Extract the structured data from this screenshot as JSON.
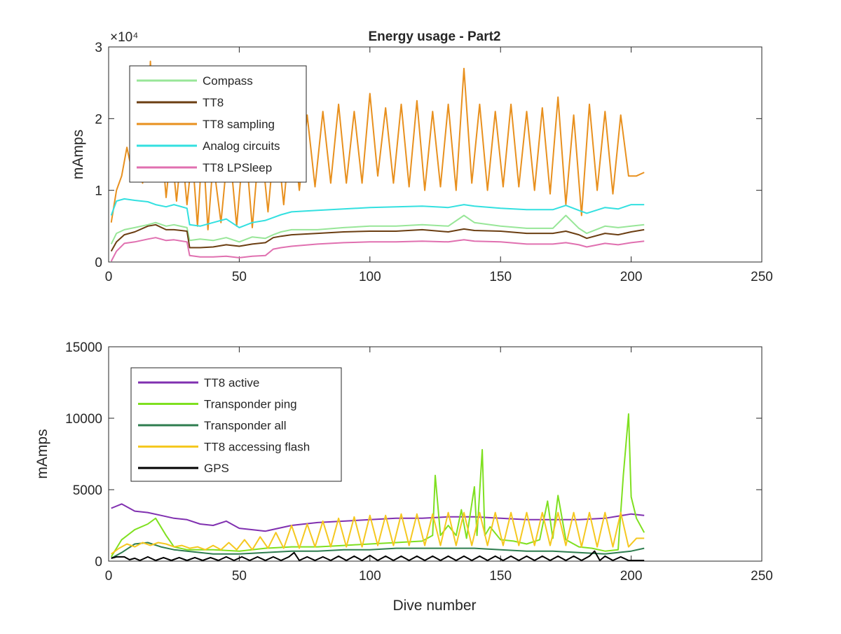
{
  "figure": {
    "title": "Energy usage - Part2"
  },
  "chart_data": [
    {
      "type": "line",
      "title": "Energy usage - Part2",
      "xlabel": "",
      "ylabel": "mAmps",
      "xlim": [
        0,
        250
      ],
      "ylim": [
        0,
        30000
      ],
      "xticks": [
        0,
        50,
        100,
        150,
        200,
        250
      ],
      "yticks": [
        0,
        10000,
        20000,
        30000
      ],
      "xtick_labels": [
        "0",
        "50",
        "100",
        "150",
        "200",
        "250"
      ],
      "ytick_labels": [
        "0",
        "1",
        "2",
        "3"
      ],
      "exponent_label": "×10⁴",
      "grid": false,
      "legend_position": "top-left",
      "legend": [
        "Compass",
        "TT8",
        "TT8 sampling",
        "Analog circuits",
        "TT8 LPSleep"
      ],
      "x_range": [
        1,
        205
      ],
      "series": [
        {
          "name": "Compass",
          "color": "#98e698",
          "x": [
            1,
            3,
            6,
            10,
            15,
            18,
            22,
            25,
            30,
            31,
            35,
            40,
            45,
            50,
            55,
            60,
            63,
            66,
            70,
            80,
            90,
            100,
            110,
            120,
            130,
            136,
            140,
            150,
            160,
            170,
            175,
            180,
            183,
            190,
            195,
            200,
            205
          ],
          "y": [
            2500,
            4000,
            4500,
            4800,
            5200,
            5500,
            5000,
            5200,
            4800,
            3000,
            3200,
            3000,
            3400,
            2800,
            3500,
            3300,
            3800,
            4200,
            4500,
            4500,
            4800,
            5000,
            5000,
            5200,
            5000,
            6500,
            5500,
            5000,
            4700,
            4700,
            6500,
            4700,
            4000,
            5000,
            4800,
            5000,
            5200
          ]
        },
        {
          "name": "TT8",
          "color": "#6b3e12",
          "x": [
            1,
            3,
            6,
            10,
            15,
            18,
            22,
            25,
            30,
            31,
            35,
            40,
            45,
            50,
            55,
            60,
            63,
            66,
            70,
            80,
            90,
            100,
            110,
            120,
            130,
            136,
            140,
            150,
            160,
            170,
            175,
            180,
            183,
            190,
            195,
            200,
            205
          ],
          "y": [
            1500,
            2800,
            3800,
            4200,
            5000,
            5200,
            4500,
            4500,
            4300,
            2000,
            2000,
            2100,
            2400,
            2200,
            2500,
            2700,
            3400,
            3600,
            3800,
            4000,
            4200,
            4300,
            4300,
            4500,
            4200,
            4600,
            4400,
            4300,
            4000,
            4000,
            4300,
            3800,
            3300,
            4000,
            3800,
            4200,
            4500
          ]
        },
        {
          "name": "TT8 sampling",
          "color": "#e8901e",
          "x": [
            1,
            3,
            5,
            7,
            9,
            11,
            13,
            15,
            16,
            18,
            20,
            22,
            24,
            26,
            28,
            30,
            32,
            34,
            36,
            38,
            40,
            43,
            46,
            49,
            52,
            55,
            58,
            61,
            64,
            67,
            70,
            73,
            76,
            79,
            82,
            85,
            88,
            91,
            94,
            97,
            100,
            103,
            106,
            109,
            112,
            115,
            118,
            121,
            124,
            127,
            130,
            133,
            136,
            139,
            142,
            145,
            148,
            151,
            154,
            157,
            160,
            163,
            166,
            169,
            172,
            175,
            178,
            181,
            184,
            187,
            190,
            193,
            196,
            199,
            202,
            205
          ],
          "y": [
            5500,
            10000,
            12000,
            16000,
            12500,
            15000,
            11000,
            19000,
            28000,
            12000,
            18000,
            9000,
            16000,
            8500,
            16000,
            8000,
            15000,
            5000,
            17000,
            4500,
            14000,
            5500,
            17000,
            5000,
            18000,
            4800,
            18000,
            7000,
            19000,
            8000,
            20000,
            10000,
            20500,
            10500,
            21000,
            11000,
            22000,
            11000,
            21000,
            11000,
            23500,
            12000,
            21500,
            11000,
            22000,
            10500,
            22500,
            10000,
            21000,
            10500,
            22000,
            10000,
            27000,
            11000,
            22000,
            10000,
            21000,
            10500,
            22000,
            10500,
            21000,
            10000,
            21500,
            9500,
            23000,
            8000,
            20500,
            6500,
            22000,
            10000,
            21000,
            9500,
            20500,
            12000,
            12000,
            12500
          ]
        },
        {
          "name": "Analog circuits",
          "color": "#33e0e0",
          "x": [
            1,
            3,
            6,
            10,
            15,
            18,
            22,
            25,
            30,
            31,
            35,
            40,
            45,
            50,
            55,
            60,
            63,
            66,
            70,
            80,
            90,
            100,
            110,
            120,
            130,
            136,
            140,
            150,
            160,
            170,
            175,
            180,
            183,
            190,
            195,
            200,
            205
          ],
          "y": [
            6500,
            8500,
            8800,
            8600,
            8400,
            8000,
            7700,
            8000,
            7500,
            5200,
            5000,
            5500,
            6000,
            4800,
            5500,
            5800,
            6200,
            6600,
            7000,
            7200,
            7400,
            7600,
            7700,
            7800,
            7600,
            8000,
            7800,
            7500,
            7300,
            7300,
            7900,
            7200,
            6800,
            7600,
            7400,
            8000,
            8000
          ]
        },
        {
          "name": "TT8 LPSleep",
          "color": "#e070b0",
          "x": [
            1,
            3,
            6,
            10,
            15,
            18,
            22,
            25,
            30,
            31,
            35,
            40,
            45,
            50,
            55,
            60,
            63,
            66,
            70,
            80,
            90,
            100,
            110,
            120,
            130,
            136,
            140,
            150,
            160,
            170,
            175,
            180,
            183,
            190,
            195,
            200,
            205
          ],
          "y": [
            100,
            1500,
            2600,
            2800,
            3200,
            3400,
            3000,
            3100,
            2800,
            900,
            700,
            700,
            800,
            600,
            800,
            900,
            1800,
            2000,
            2200,
            2500,
            2700,
            2800,
            2800,
            2900,
            2800,
            3100,
            2900,
            2800,
            2500,
            2500,
            2700,
            2400,
            2100,
            2600,
            2400,
            2700,
            2900
          ]
        }
      ]
    },
    {
      "type": "line",
      "title": "",
      "xlabel": "Dive number",
      "ylabel": "mAmps",
      "xlim": [
        0,
        250
      ],
      "ylim": [
        0,
        15000
      ],
      "xticks": [
        0,
        50,
        100,
        150,
        200,
        250
      ],
      "yticks": [
        0,
        5000,
        10000,
        15000
      ],
      "xtick_labels": [
        "0",
        "50",
        "100",
        "150",
        "200",
        "250"
      ],
      "ytick_labels": [
        "0",
        "5000",
        "10000",
        "15000"
      ],
      "grid": false,
      "legend_position": "top-left",
      "legend": [
        "TT8 active",
        "Transponder ping",
        "Transponder all",
        "TT8 accessing flash",
        "GPS"
      ],
      "x_range": [
        1,
        205
      ],
      "series": [
        {
          "name": "TT8 active",
          "color": "#8030b0",
          "x": [
            1,
            5,
            10,
            15,
            20,
            25,
            30,
            35,
            40,
            45,
            50,
            55,
            60,
            70,
            80,
            90,
            100,
            110,
            120,
            130,
            140,
            150,
            160,
            170,
            180,
            190,
            200,
            205
          ],
          "y": [
            3700,
            4000,
            3500,
            3400,
            3200,
            3000,
            2900,
            2600,
            2500,
            2800,
            2300,
            2200,
            2100,
            2500,
            2700,
            2800,
            2900,
            3000,
            3000,
            3100,
            3100,
            3000,
            2900,
            2900,
            2900,
            3000,
            3300,
            3200
          ]
        },
        {
          "name": "Transponder ping",
          "color": "#7fe020",
          "x": [
            1,
            5,
            10,
            15,
            18,
            22,
            25,
            30,
            40,
            50,
            60,
            70,
            80,
            90,
            100,
            110,
            120,
            124,
            125,
            127,
            130,
            133,
            135,
            137,
            140,
            141,
            143,
            144,
            146,
            150,
            155,
            160,
            165,
            168,
            170,
            172,
            175,
            180,
            185,
            190,
            195,
            197,
            199,
            200,
            202,
            205
          ],
          "y": [
            300,
            1500,
            2200,
            2600,
            3000,
            1800,
            1000,
            800,
            800,
            700,
            900,
            1000,
            1000,
            1100,
            1200,
            1300,
            1400,
            1800,
            6000,
            1800,
            2500,
            1800,
            3600,
            1600,
            5200,
            1800,
            7800,
            1800,
            2400,
            1500,
            1400,
            1200,
            1500,
            4200,
            1600,
            4600,
            1500,
            1000,
            900,
            700,
            800,
            6000,
            10300,
            4500,
            3000,
            2000
          ]
        },
        {
          "name": "Transponder all",
          "color": "#2e7d4f",
          "x": [
            1,
            5,
            10,
            15,
            20,
            25,
            30,
            40,
            50,
            60,
            70,
            80,
            90,
            100,
            110,
            120,
            130,
            140,
            150,
            160,
            170,
            180,
            190,
            200,
            205
          ],
          "y": [
            200,
            600,
            1200,
            1300,
            1000,
            800,
            700,
            500,
            500,
            600,
            700,
            700,
            800,
            800,
            900,
            900,
            900,
            900,
            800,
            700,
            700,
            600,
            500,
            700,
            900
          ]
        },
        {
          "name": "TT8 accessing flash",
          "color": "#f5c820",
          "x": [
            1,
            4,
            7,
            10,
            13,
            16,
            19,
            22,
            25,
            28,
            31,
            34,
            37,
            40,
            43,
            46,
            49,
            52,
            55,
            58,
            61,
            64,
            67,
            70,
            73,
            76,
            79,
            82,
            85,
            88,
            91,
            94,
            97,
            100,
            103,
            106,
            109,
            112,
            115,
            118,
            121,
            124,
            127,
            130,
            133,
            136,
            139,
            142,
            145,
            148,
            151,
            154,
            157,
            160,
            163,
            166,
            169,
            172,
            175,
            178,
            181,
            184,
            187,
            190,
            193,
            196,
            199,
            202,
            205
          ],
          "y": [
            500,
            900,
            1200,
            1000,
            1300,
            1100,
            1300,
            1200,
            1000,
            1100,
            900,
            1000,
            800,
            1100,
            800,
            1300,
            800,
            1500,
            800,
            1700,
            900,
            2000,
            900,
            2500,
            900,
            2600,
            1000,
            2800,
            1000,
            3000,
            1000,
            3100,
            1000,
            3200,
            1100,
            3200,
            1100,
            3300,
            1100,
            3300,
            1100,
            3300,
            1100,
            3400,
            1100,
            3400,
            1100,
            3400,
            1100,
            3400,
            1100,
            3400,
            1100,
            3400,
            1100,
            3400,
            1100,
            3400,
            1100,
            3400,
            1000,
            3400,
            1000,
            3400,
            1000,
            3400,
            1000,
            1600,
            1600
          ]
        },
        {
          "name": "GPS",
          "color": "#000000",
          "x": [
            1,
            3,
            6,
            8,
            10,
            12,
            15,
            18,
            21,
            24,
            27,
            30,
            33,
            36,
            39,
            42,
            45,
            48,
            51,
            54,
            57,
            60,
            63,
            66,
            69,
            71,
            73,
            76,
            79,
            82,
            85,
            88,
            91,
            94,
            97,
            100,
            103,
            106,
            109,
            112,
            115,
            118,
            121,
            124,
            127,
            130,
            133,
            136,
            139,
            142,
            145,
            148,
            151,
            154,
            157,
            160,
            163,
            166,
            169,
            172,
            175,
            178,
            181,
            184,
            186,
            188,
            190,
            193,
            196,
            199,
            202,
            205
          ],
          "y": [
            200,
            300,
            300,
            100,
            200,
            50,
            300,
            50,
            250,
            50,
            250,
            50,
            250,
            50,
            250,
            50,
            300,
            50,
            300,
            50,
            300,
            50,
            300,
            50,
            300,
            600,
            50,
            300,
            50,
            300,
            50,
            350,
            50,
            350,
            50,
            400,
            50,
            350,
            50,
            350,
            50,
            350,
            50,
            350,
            50,
            350,
            50,
            350,
            50,
            350,
            50,
            350,
            50,
            350,
            50,
            350,
            50,
            350,
            50,
            350,
            50,
            350,
            50,
            350,
            700,
            50,
            350,
            50,
            300,
            50,
            50,
            50
          ]
        }
      ]
    }
  ]
}
